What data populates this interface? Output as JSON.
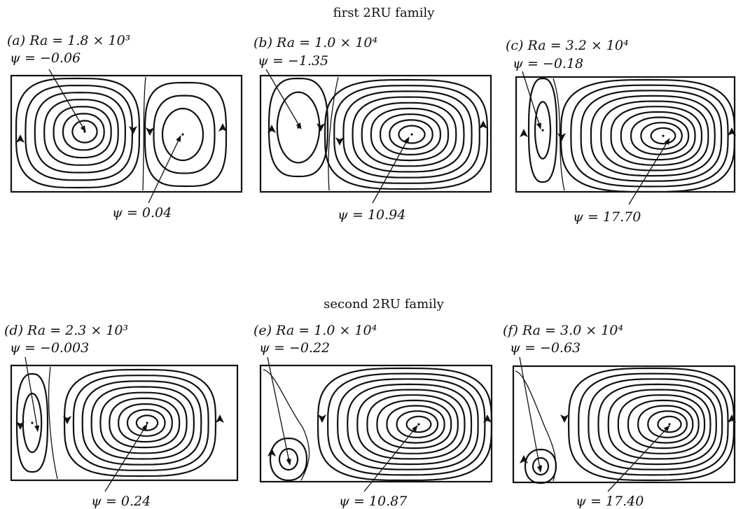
{
  "families": [
    {
      "title": "first 2RU family",
      "panels": [
        {
          "label": "(a)",
          "ra": "Ra = 1.8 × 10³",
          "psi_top": "ψ = −0.06",
          "psi_bottom": "ψ = 0.04"
        },
        {
          "label": "(b)",
          "ra": "Ra = 1.0 × 10⁴",
          "psi_top": "ψ = −1.35",
          "psi_bottom": "ψ = 10.94"
        },
        {
          "label": "(c)",
          "ra": "Ra = 3.2 × 10⁴",
          "psi_top": "ψ = −0.18",
          "psi_bottom": "ψ = 17.70"
        }
      ]
    },
    {
      "title": "second 2RU family",
      "panels": [
        {
          "label": "(d)",
          "ra": "Ra = 2.3 × 10³",
          "psi_top": "ψ = −0.003",
          "psi_bottom": "ψ = 0.24"
        },
        {
          "label": "(e)",
          "ra": "Ra = 1.0 × 10⁴",
          "psi_top": "ψ = −0.22",
          "psi_bottom": "ψ = 10.87"
        },
        {
          "label": "(f)",
          "ra": "Ra = 3.0 × 10⁴",
          "psi_top": "ψ = −0.63",
          "psi_bottom": "ψ = 17.40"
        }
      ]
    }
  ]
}
